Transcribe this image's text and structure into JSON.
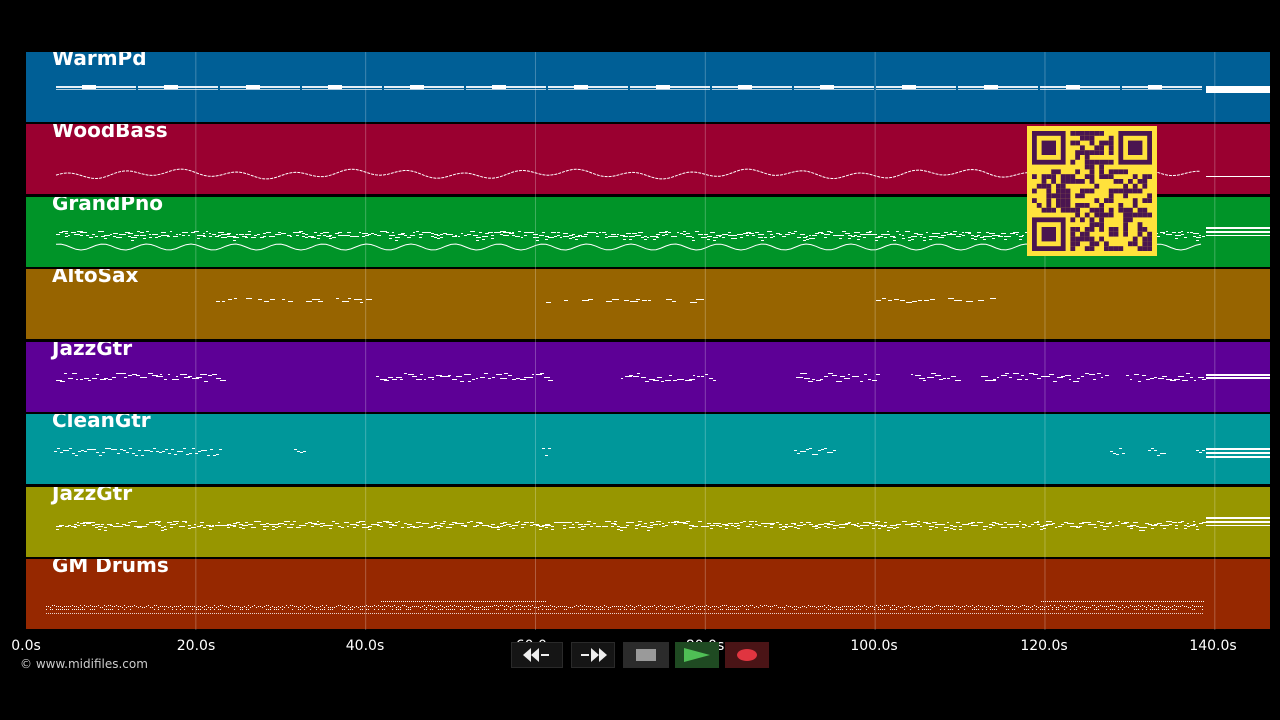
{
  "timeline": {
    "tracks": [
      {
        "name": "WarmPd",
        "color": "#005f96",
        "pattern": "sustain"
      },
      {
        "name": "WoodBass",
        "color": "#9a0030",
        "pattern": "zigzag"
      },
      {
        "name": "GrandPno",
        "color": "#009428",
        "pattern": "dense"
      },
      {
        "name": "AltoSax",
        "color": "#976400",
        "pattern": "phrases"
      },
      {
        "name": "JazzGtr",
        "color": "#5d0096",
        "pattern": "clusters"
      },
      {
        "name": "CleanGtr",
        "color": "#00979a",
        "pattern": "sparse"
      },
      {
        "name": "JazzGtr",
        "color": "#979600",
        "pattern": "dense"
      },
      {
        "name": "GM Drums",
        "color": "#962800",
        "pattern": "drums"
      }
    ],
    "duration_seconds": 146.5,
    "tick_labels": [
      "0.0s",
      "20.0s",
      "40.0s",
      "60.0s",
      "80.0s",
      "100.0s",
      "120.0s",
      "140.0s"
    ]
  },
  "qr_code": {
    "icon": "qr-code-icon",
    "color": "#ffe23c"
  },
  "copyright": "© www.midifiles.com",
  "transport": {
    "rewind_icon": "rewind-icon",
    "forward_icon": "fast-forward-icon",
    "stop_icon": "stop-icon",
    "play_icon": "play-icon",
    "record_icon": "record-icon"
  }
}
